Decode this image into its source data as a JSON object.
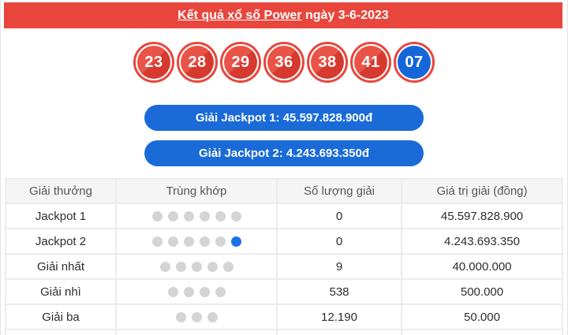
{
  "colors": {
    "accent_red": "#e8463c",
    "accent_blue": "#1a6bd8",
    "prize_text_red": "#f44238",
    "dot_gray": "#d4d4d4",
    "dot_blue": "#1a73e8",
    "ball_blue": "#1566d8"
  },
  "header": {
    "title_link": "Kết quả xổ số Power",
    "title_rest": " ngày 3-6-2023"
  },
  "balls": [
    {
      "value": "23",
      "color": "red"
    },
    {
      "value": "28",
      "color": "red"
    },
    {
      "value": "29",
      "color": "red"
    },
    {
      "value": "36",
      "color": "red"
    },
    {
      "value": "38",
      "color": "red"
    },
    {
      "value": "41",
      "color": "red"
    },
    {
      "value": "07",
      "color": "blue"
    }
  ],
  "jackpot_buttons": [
    {
      "label": "Giải Jackpot 1: 45.597.828.900đ"
    },
    {
      "label": "Giải Jackpot 2: 4.243.693.350đ"
    }
  ],
  "table": {
    "headers": [
      "Giải thưởng",
      "Trùng khớp",
      "Số lượng giải",
      "Giá trị giải (đồng)"
    ],
    "rows": [
      {
        "prize": "Jackpot 1",
        "match": {
          "gray": 6,
          "blue": 0
        },
        "count": "0",
        "value": "45.597.828.900",
        "value_red": true
      },
      {
        "prize": "Jackpot 2",
        "match": {
          "gray": 5,
          "blue": 1
        },
        "count": "0",
        "value": "4.243.693.350",
        "value_red": true
      },
      {
        "prize": "Giải nhất",
        "match": {
          "gray": 5,
          "blue": 0
        },
        "count": "9",
        "value": "40.000.000",
        "value_red": false
      },
      {
        "prize": "Giải nhì",
        "match": {
          "gray": 4,
          "blue": 0
        },
        "count": "538",
        "value": "500.000",
        "value_red": false
      },
      {
        "prize": "Giải ba",
        "match": {
          "gray": 3,
          "blue": 0
        },
        "count": "12.190",
        "value": "50.000",
        "value_red": false
      }
    ]
  }
}
